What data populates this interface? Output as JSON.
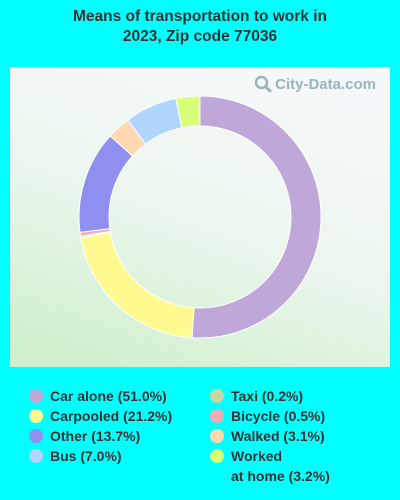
{
  "title": "Means of transportation to work in\n2023, Zip code 77036",
  "watermark": "City-Data.com",
  "chart_data": {
    "type": "pie",
    "style": "donut",
    "slices": [
      {
        "label": "Car alone (51.0%)",
        "value": 51.0,
        "color": "#bfa7d9"
      },
      {
        "label": "Carpooled (21.2%)",
        "value": 21.2,
        "color": "#fffa90"
      },
      {
        "label": "Taxi (0.2%)",
        "value": 0.2,
        "color": "#c9d6a6"
      },
      {
        "label": "Bicycle (0.5%)",
        "value": 0.5,
        "color": "#f0acb0"
      },
      {
        "label": "Other (13.7%)",
        "value": 13.7,
        "color": "#8f8ff0"
      },
      {
        "label": "Walked (3.1%)",
        "value": 3.1,
        "color": "#ffd8b0"
      },
      {
        "label": "Bus (7.0%)",
        "value": 7.0,
        "color": "#b0d6ff"
      },
      {
        "label": "Worked\nat home (3.2%)",
        "value": 3.2,
        "color": "#d8ff78"
      }
    ],
    "legend_left": [
      0,
      1,
      4,
      6
    ],
    "legend_right": [
      2,
      3,
      5,
      7
    ]
  }
}
